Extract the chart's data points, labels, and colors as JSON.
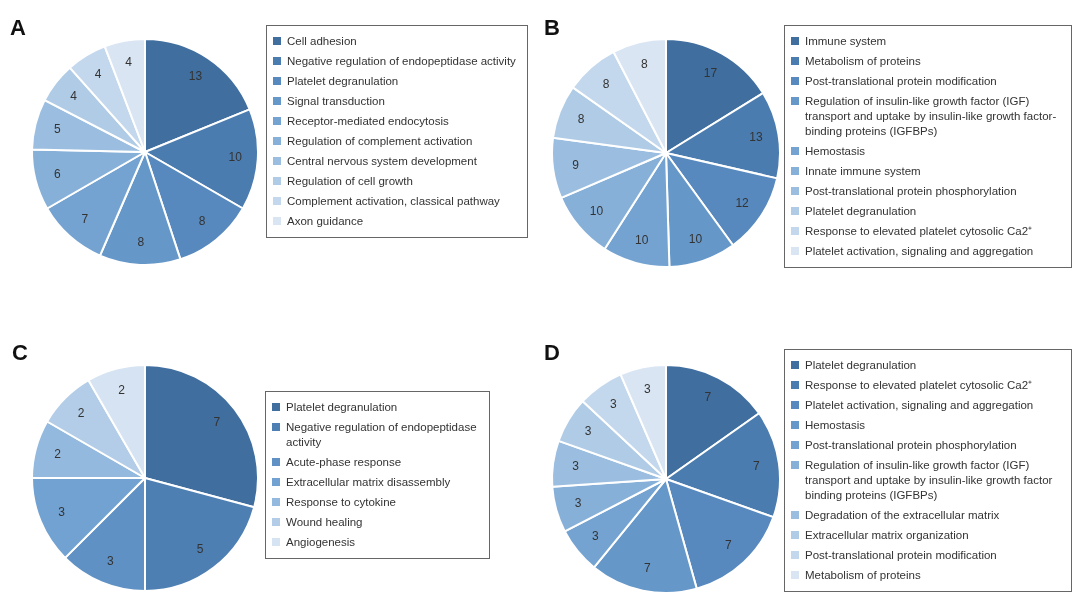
{
  "chart_data": [
    {
      "type": "pie",
      "title": "A",
      "legend": "right",
      "data_labels": true,
      "categories": [
        "Cell adhesion",
        "Negative regulation of endopeptidase activity",
        "Platelet degranulation",
        "Signal transduction",
        "Receptor-mediated endocytosis",
        "Regulation of complement activation",
        "Central nervous system development",
        "Regulation of cell growth",
        "Complement activation, classical pathway",
        "Axon guidance"
      ],
      "values": [
        13,
        10,
        8,
        8,
        7,
        6,
        5,
        4,
        4,
        4
      ],
      "colors": [
        "#3f6e9f",
        "#4b7cb0",
        "#5789be",
        "#6597c9",
        "#74a3d2",
        "#87b0d9",
        "#9bbee0",
        "#afcbe6",
        "#c4d8ed",
        "#d9e5f3"
      ]
    },
    {
      "type": "pie",
      "title": "B",
      "legend": "right",
      "data_labels": true,
      "categories": [
        "Immune system",
        "Metabolism of proteins",
        "Post-translational protein modification",
        "Regulation of insulin-like growth factor (IGF) transport and uptake by insulin-like growth factor-binding proteins (IGFBPs)",
        "Hemostasis",
        "Innate immune system",
        "Post-translational protein phosphorylation",
        "Platelet degranulation",
        "Response to elevated platelet cytosolic Ca2⁺",
        "Platelet activation, signaling and aggregation"
      ],
      "values": [
        17,
        13,
        12,
        10,
        10,
        10,
        9,
        8,
        8,
        8
      ],
      "colors": [
        "#3f6e9f",
        "#4b7cb0",
        "#5789be",
        "#6597c9",
        "#74a3d2",
        "#87b0d9",
        "#9bbee0",
        "#afcbe6",
        "#c4d8ed",
        "#d9e5f3"
      ]
    },
    {
      "type": "pie",
      "title": "C",
      "legend": "right",
      "data_labels": true,
      "categories": [
        "Platelet degranulation",
        "Negative regulation of endopeptidase activity",
        "Acute-phase response",
        "Extracellular matrix disassembly",
        "Response to cytokine",
        "Wound healing",
        "Angiogenesis"
      ],
      "values": [
        7,
        5,
        3,
        3,
        2,
        2,
        2
      ],
      "colors": [
        "#3f6e9f",
        "#4e7fb3",
        "#5f91c4",
        "#72a2d1",
        "#94b9de",
        "#b3cde8",
        "#d6e3f2"
      ]
    },
    {
      "type": "pie",
      "title": "D",
      "legend": "right",
      "data_labels": true,
      "categories": [
        "Platelet degranulation",
        "Response to elevated platelet cytosolic Ca2⁺",
        "Platelet activation, signaling and aggregation",
        "Hemostasis",
        "Post-translational protein phosphorylation",
        "Regulation of insulin-like growth factor (IGF) transport and uptake by insulin-like growth factor binding proteins (IGFBPs)",
        "Degradation of the extracellular matrix",
        "Extracellular matrix organization",
        "Post-translational protein modification",
        "Metabolism of proteins"
      ],
      "values": [
        7,
        7,
        7,
        7,
        3,
        3,
        3,
        3,
        3,
        3
      ],
      "colors": [
        "#3f6e9f",
        "#4b7cb0",
        "#5789be",
        "#6597c9",
        "#74a3d2",
        "#87b0d9",
        "#9bbee0",
        "#afcbe6",
        "#c4d8ed",
        "#d9e5f3"
      ]
    }
  ]
}
